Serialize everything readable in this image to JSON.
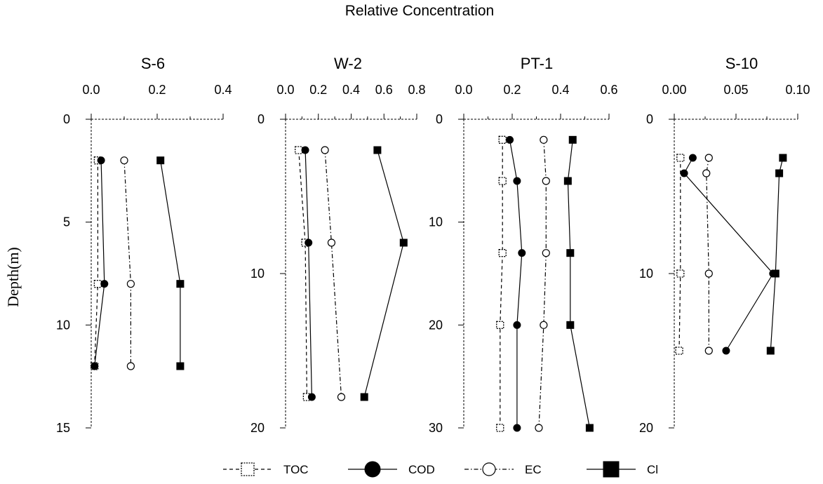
{
  "figure": {
    "title": "Relative Concentration",
    "ylabel": "Depth(m)"
  },
  "legend": {
    "items": [
      {
        "series": "TOC",
        "label": "TOC",
        "marker": "open-square",
        "dash": "dashed"
      },
      {
        "series": "COD",
        "label": "COD",
        "marker": "filled-circle",
        "dash": "solid"
      },
      {
        "series": "EC",
        "label": "EC",
        "marker": "open-circle",
        "dash": "dashdot"
      },
      {
        "series": "Cl",
        "label": "Cl",
        "marker": "filled-square",
        "dash": "solid"
      }
    ]
  },
  "chart_data": [
    {
      "type": "line",
      "title": "S-6",
      "xlim": [
        0.0,
        0.4
      ],
      "xticks": [
        "0.0",
        "0.2",
        "0.4"
      ],
      "ylim": [
        0,
        15
      ],
      "yticks": [
        "0",
        "5",
        "10",
        "15"
      ],
      "series": [
        {
          "name": "TOC",
          "points": [
            [
              0.02,
              2
            ],
            [
              0.02,
              8
            ],
            [
              0.01,
              12
            ]
          ]
        },
        {
          "name": "COD",
          "points": [
            [
              0.03,
              2
            ],
            [
              0.04,
              8
            ],
            [
              0.01,
              12
            ]
          ]
        },
        {
          "name": "EC",
          "points": [
            [
              0.1,
              2
            ],
            [
              0.12,
              8
            ],
            [
              0.12,
              12
            ]
          ]
        },
        {
          "name": "Cl",
          "points": [
            [
              0.21,
              2
            ],
            [
              0.27,
              8
            ],
            [
              0.27,
              12
            ]
          ]
        }
      ]
    },
    {
      "type": "line",
      "title": "W-2",
      "xlim": [
        0.0,
        0.8
      ],
      "xticks": [
        "0.0",
        "0.2",
        "0.4",
        "0.6",
        "0.8"
      ],
      "ylim": [
        0,
        20
      ],
      "yticks": [
        "0",
        "10",
        "20"
      ],
      "series": [
        {
          "name": "TOC",
          "points": [
            [
              0.08,
              2
            ],
            [
              0.12,
              8
            ],
            [
              0.13,
              18
            ]
          ]
        },
        {
          "name": "COD",
          "points": [
            [
              0.12,
              2
            ],
            [
              0.14,
              8
            ],
            [
              0.16,
              18
            ]
          ]
        },
        {
          "name": "EC",
          "points": [
            [
              0.24,
              2
            ],
            [
              0.28,
              8
            ],
            [
              0.34,
              18
            ]
          ]
        },
        {
          "name": "Cl",
          "points": [
            [
              0.56,
              2
            ],
            [
              0.72,
              8
            ],
            [
              0.48,
              18
            ]
          ]
        }
      ]
    },
    {
      "type": "line",
      "title": "PT-1",
      "xlim": [
        0.0,
        0.6
      ],
      "xticks": [
        "0.0",
        "0.2",
        "0.4",
        "0.6"
      ],
      "ylim": [
        0,
        30
      ],
      "yticks": [
        "0",
        "10",
        "20",
        "30"
      ],
      "series": [
        {
          "name": "TOC",
          "points": [
            [
              0.16,
              2
            ],
            [
              0.16,
              6
            ],
            [
              0.16,
              13
            ],
            [
              0.15,
              20
            ],
            [
              0.15,
              30
            ]
          ]
        },
        {
          "name": "COD",
          "points": [
            [
              0.19,
              2
            ],
            [
              0.22,
              6
            ],
            [
              0.24,
              13
            ],
            [
              0.22,
              20
            ],
            [
              0.22,
              30
            ]
          ]
        },
        {
          "name": "EC",
          "points": [
            [
              0.33,
              2
            ],
            [
              0.34,
              6
            ],
            [
              0.34,
              13
            ],
            [
              0.33,
              20
            ],
            [
              0.31,
              30
            ]
          ]
        },
        {
          "name": "Cl",
          "points": [
            [
              0.45,
              2
            ],
            [
              0.43,
              6
            ],
            [
              0.44,
              13
            ],
            [
              0.44,
              20
            ],
            [
              0.52,
              30
            ]
          ]
        }
      ]
    },
    {
      "type": "line",
      "title": "S-10",
      "xlim": [
        0.0,
        0.1
      ],
      "xticks": [
        "0.00",
        "0.05",
        "0.10"
      ],
      "ylim": [
        0,
        20
      ],
      "yticks": [
        "0",
        "10",
        "20"
      ],
      "series": [
        {
          "name": "TOC",
          "points": [
            [
              0.005,
              2.5
            ],
            [
              0.005,
              10
            ],
            [
              0.004,
              15
            ]
          ]
        },
        {
          "name": "COD",
          "points": [
            [
              0.015,
              2.5
            ],
            [
              0.008,
              3.5
            ],
            [
              0.08,
              10
            ],
            [
              0.042,
              15
            ]
          ]
        },
        {
          "name": "EC",
          "points": [
            [
              0.028,
              2.5
            ],
            [
              0.026,
              3.5
            ],
            [
              0.028,
              10
            ],
            [
              0.028,
              15
            ]
          ]
        },
        {
          "name": "Cl",
          "points": [
            [
              0.088,
              2.5
            ],
            [
              0.085,
              3.5
            ],
            [
              0.082,
              10
            ],
            [
              0.078,
              15
            ]
          ]
        }
      ]
    }
  ]
}
